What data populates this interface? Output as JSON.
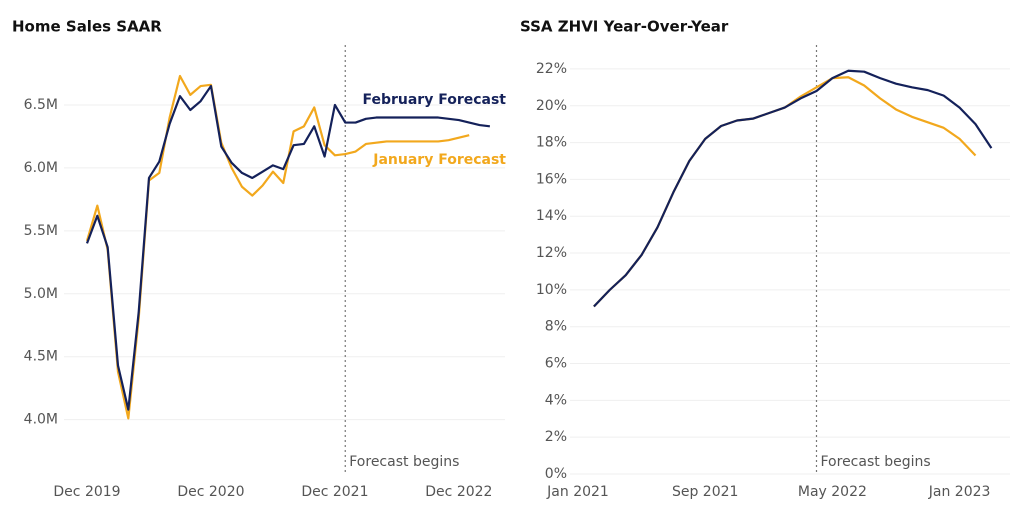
{
  "chart_data": [
    {
      "type": "line",
      "title": "Home Sales SAAR",
      "categories": [
        "Dec 2019",
        null,
        null,
        null,
        null,
        null,
        null,
        null,
        null,
        null,
        null,
        null,
        "Dec 2020",
        null,
        null,
        null,
        null,
        null,
        null,
        null,
        null,
        null,
        null,
        null,
        "Dec 2021",
        null,
        null,
        null,
        null,
        null,
        null,
        null,
        null,
        null,
        null,
        null,
        "Dec 2022",
        null,
        null,
        null
      ],
      "series": [
        {
          "name": "February Forecast",
          "color": "#14215a",
          "values": [
            5.4,
            5.62,
            5.37,
            4.43,
            4.08,
            4.85,
            5.92,
            6.05,
            6.35,
            6.57,
            6.46,
            6.53,
            6.65,
            6.17,
            6.04,
            5.96,
            5.92,
            5.97,
            6.02,
            5.99,
            6.18,
            6.19,
            6.33,
            6.09,
            6.5,
            6.36,
            6.36,
            6.39,
            6.4,
            6.4,
            6.4,
            6.4,
            6.4,
            6.4,
            6.4,
            6.39,
            6.38,
            6.36,
            6.34,
            6.33
          ]
        },
        {
          "name": "January Forecast",
          "color": "#f2a81d",
          "values": [
            5.42,
            5.7,
            5.35,
            4.38,
            4.01,
            4.8,
            5.9,
            5.96,
            6.4,
            6.73,
            6.58,
            6.65,
            6.66,
            6.2,
            6.0,
            5.85,
            5.78,
            5.86,
            5.97,
            5.88,
            6.29,
            6.33,
            6.48,
            6.18,
            6.1,
            6.11,
            6.13,
            6.19,
            6.2,
            6.21,
            6.21,
            6.21,
            6.21,
            6.21,
            6.21,
            6.22,
            6.24,
            6.26,
            null,
            null
          ]
        }
      ],
      "ylim": [
        3.6,
        7.0
      ],
      "yticks": [
        {
          "value": 4.0,
          "label": "4.0M"
        },
        {
          "value": 4.5,
          "label": "4.5M"
        },
        {
          "value": 5.0,
          "label": "5.0M"
        },
        {
          "value": 5.5,
          "label": "5.5M"
        },
        {
          "value": 6.0,
          "label": "6.0M"
        },
        {
          "value": 6.5,
          "label": "6.5M"
        }
      ],
      "grid": true,
      "annotation": {
        "text": "Forecast begins",
        "x": 25
      }
    },
    {
      "type": "line",
      "title": "SSA ZHVI Year-Over-Year",
      "categories": [
        "Jan 2021",
        null,
        null,
        null,
        null,
        null,
        null,
        null,
        "Sep 2021",
        null,
        null,
        null,
        null,
        null,
        null,
        null,
        "May 2022",
        null,
        null,
        null,
        null,
        null,
        null,
        null,
        "Jan 2023",
        null,
        null
      ],
      "series": [
        {
          "color": "#14215a",
          "values": [
            null,
            9.1,
            10.0,
            10.8,
            11.9,
            13.4,
            15.3,
            17.0,
            18.2,
            18.9,
            19.2,
            19.3,
            19.6,
            19.9,
            20.4,
            20.8,
            21.5,
            21.9,
            21.85,
            21.5,
            21.2,
            21.0,
            20.85,
            20.55,
            19.9,
            19.0,
            17.7
          ]
        },
        {
          "color": "#f2a81d",
          "values": [
            null,
            9.1,
            10.0,
            10.8,
            11.9,
            13.4,
            15.3,
            17.0,
            18.2,
            18.9,
            19.2,
            19.3,
            19.6,
            19.9,
            20.5,
            21.0,
            21.5,
            21.55,
            21.1,
            20.4,
            19.8,
            19.4,
            19.1,
            18.8,
            18.2,
            17.3,
            null
          ]
        }
      ],
      "ylim": [
        0,
        23.3
      ],
      "yticks": [
        {
          "value": 0,
          "label": "0%"
        },
        {
          "value": 2,
          "label": "2%"
        },
        {
          "value": 4,
          "label": "4%"
        },
        {
          "value": 6,
          "label": "6%"
        },
        {
          "value": 8,
          "label": "8%"
        },
        {
          "value": 10,
          "label": "10%"
        },
        {
          "value": 12,
          "label": "12%"
        },
        {
          "value": 14,
          "label": "14%"
        },
        {
          "value": 16,
          "label": "16%"
        },
        {
          "value": 18,
          "label": "18%"
        },
        {
          "value": 20,
          "label": "20%"
        },
        {
          "value": 22,
          "label": "22%"
        }
      ],
      "grid": true,
      "annotation": {
        "text": "Forecast begins",
        "x": 15
      }
    }
  ]
}
